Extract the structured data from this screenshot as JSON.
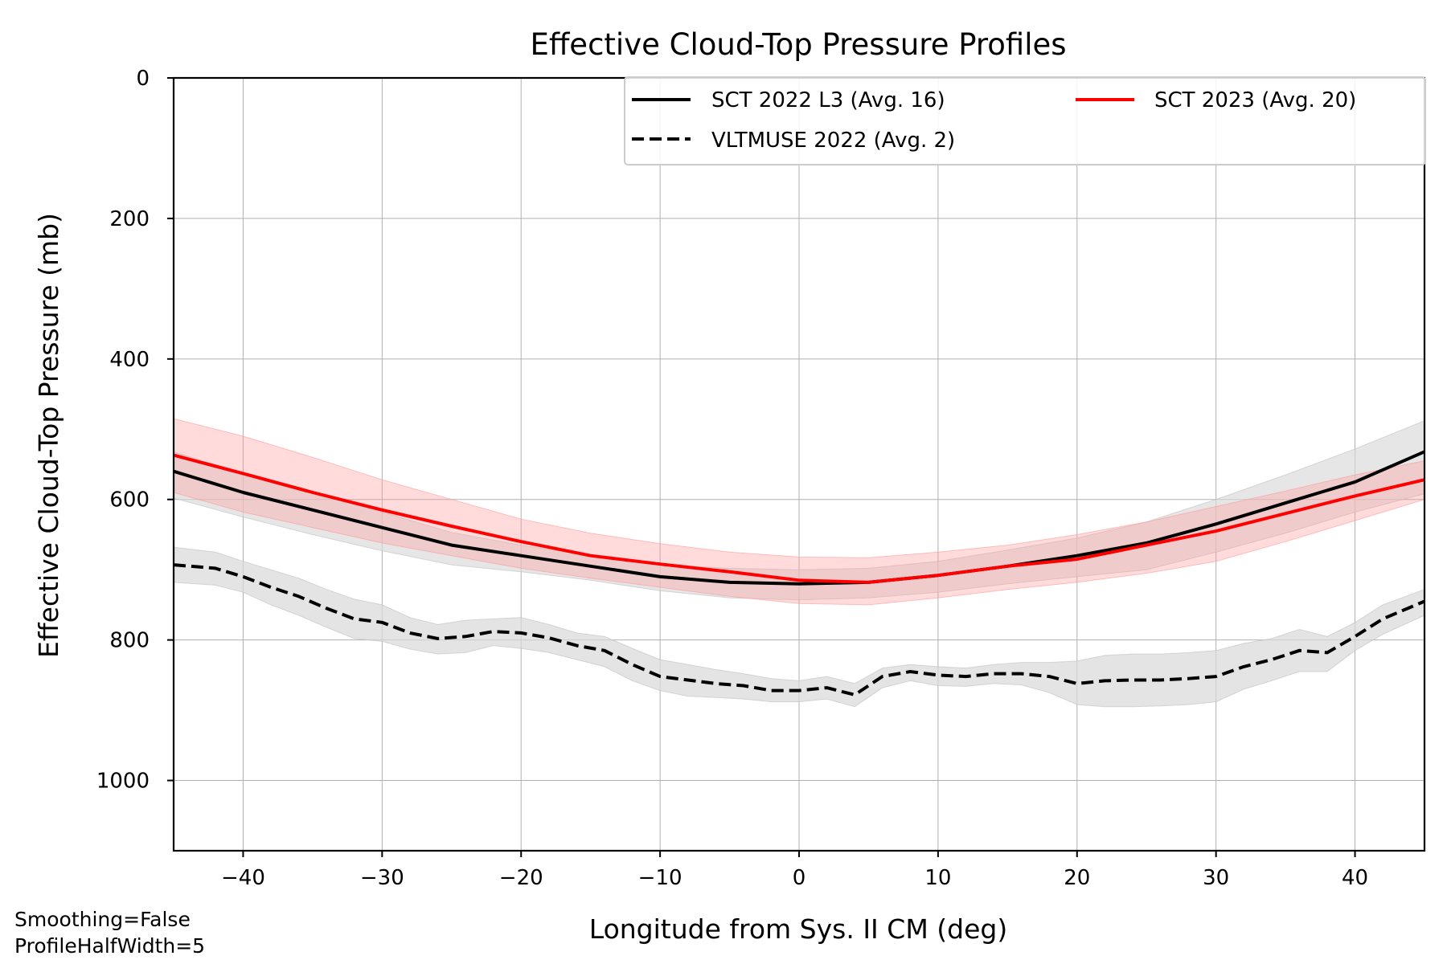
{
  "footnotes": [
    "Smoothing=False",
    "ProfileHalfWidth=5"
  ],
  "chart_data": {
    "type": "line",
    "title": "Effective Cloud-Top Pressure Profiles",
    "xlabel": "Longitude from Sys. II CM (deg)",
    "ylabel": "Effective Cloud-Top Pressure (mb)",
    "xlim": [
      -45,
      45
    ],
    "ylim": [
      0,
      1100
    ],
    "y_inverted": true,
    "xticks": [
      -40,
      -30,
      -20,
      -10,
      0,
      10,
      20,
      30,
      40
    ],
    "xtick_labels": [
      "−40",
      "−30",
      "−20",
      "−10",
      "0",
      "10",
      "20",
      "30",
      "40"
    ],
    "yticks": [
      0,
      200,
      400,
      600,
      800,
      1000
    ],
    "ytick_labels": [
      "0",
      "200",
      "400",
      "600",
      "800",
      "1000"
    ],
    "grid": true,
    "legend_position": "top-right",
    "colors": {
      "black": "#000000",
      "red": "#ff0000",
      "gray_band": "#d9d9d9",
      "red_band": "#ffcccc"
    },
    "series": [
      {
        "name": "SCT 2022 L3 (Avg. 16)",
        "color": "#000000",
        "style": "solid",
        "x": [
          -45,
          -40,
          -35,
          -30,
          -25,
          -20,
          -15,
          -10,
          -5,
          0,
          5,
          10,
          15,
          20,
          25,
          30,
          35,
          40,
          45
        ],
        "y": [
          560,
          590,
          615,
          640,
          665,
          680,
          695,
          710,
          718,
          720,
          718,
          708,
          695,
          680,
          662,
          635,
          605,
          575,
          532
        ],
        "lower": [
          532,
          563,
          590,
          618,
          647,
          665,
          680,
          693,
          698,
          700,
          698,
          688,
          672,
          655,
          632,
          600,
          565,
          528,
          488
        ],
        "upper": [
          598,
          625,
          650,
          673,
          693,
          703,
          715,
          730,
          740,
          743,
          740,
          732,
          720,
          710,
          700,
          675,
          648,
          618,
          592
        ]
      },
      {
        "name": "VLTMUSE 2022 (Avg. 2)",
        "color": "#000000",
        "style": "dashed",
        "x": [
          -45,
          -42,
          -40,
          -38,
          -36,
          -34,
          -32,
          -30,
          -28,
          -26,
          -24,
          -22,
          -20,
          -18,
          -16,
          -14,
          -12,
          -10,
          -8,
          -6,
          -4,
          -2,
          0,
          2,
          4,
          6,
          8,
          10,
          12,
          14,
          16,
          18,
          20,
          22,
          24,
          26,
          28,
          30,
          32,
          34,
          36,
          38,
          40,
          42,
          45
        ],
        "y": [
          693,
          698,
          710,
          725,
          738,
          755,
          770,
          775,
          790,
          798,
          795,
          788,
          790,
          797,
          808,
          815,
          835,
          852,
          857,
          862,
          865,
          872,
          872,
          868,
          878,
          852,
          845,
          850,
          852,
          848,
          848,
          852,
          862,
          858,
          857,
          857,
          855,
          852,
          838,
          828,
          815,
          818,
          795,
          770,
          745
        ],
        "lower": [
          668,
          675,
          688,
          700,
          712,
          728,
          742,
          750,
          768,
          778,
          772,
          770,
          768,
          778,
          790,
          795,
          812,
          828,
          835,
          842,
          848,
          855,
          858,
          852,
          862,
          840,
          835,
          838,
          840,
          835,
          832,
          832,
          830,
          822,
          820,
          820,
          818,
          815,
          805,
          798,
          785,
          795,
          775,
          750,
          728
        ],
        "upper": [
          718,
          722,
          732,
          750,
          765,
          782,
          798,
          802,
          813,
          820,
          818,
          808,
          812,
          818,
          828,
          838,
          858,
          872,
          880,
          882,
          884,
          888,
          888,
          884,
          895,
          868,
          858,
          865,
          866,
          862,
          864,
          875,
          892,
          895,
          895,
          894,
          892,
          888,
          870,
          858,
          845,
          845,
          815,
          792,
          765
        ]
      },
      {
        "name": "SCT 2023 (Avg. 20)",
        "color": "#ff0000",
        "style": "solid",
        "x": [
          -45,
          -40,
          -35,
          -30,
          -25,
          -20,
          -15,
          -10,
          -5,
          0,
          5,
          10,
          15,
          20,
          25,
          30,
          35,
          40,
          45
        ],
        "y": [
          537,
          563,
          590,
          615,
          638,
          660,
          680,
          692,
          703,
          715,
          718,
          708,
          695,
          685,
          665,
          645,
          620,
          595,
          572
        ],
        "lower": [
          485,
          510,
          540,
          572,
          600,
          628,
          648,
          663,
          675,
          682,
          683,
          675,
          665,
          650,
          632,
          610,
          588,
          565,
          545
        ],
        "upper": [
          590,
          618,
          640,
          662,
          680,
          698,
          712,
          725,
          738,
          748,
          750,
          740,
          728,
          718,
          705,
          688,
          660,
          630,
          600
        ]
      }
    ]
  }
}
